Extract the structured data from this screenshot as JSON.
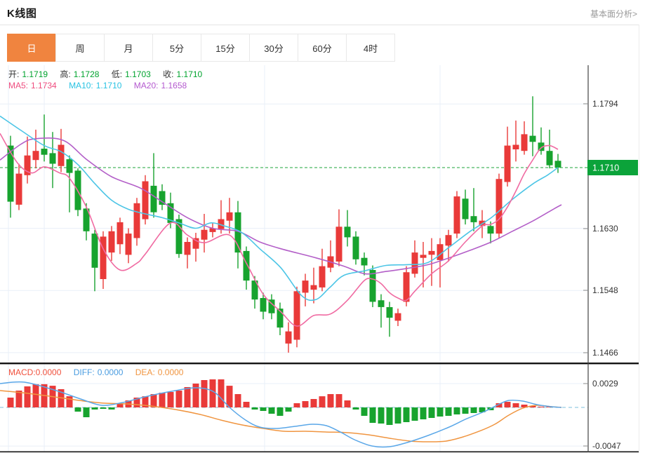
{
  "header": {
    "title": "K线图",
    "link": "基本面分析>"
  },
  "tabs": {
    "items": [
      {
        "label": "日",
        "name": "tab-daily",
        "active": true
      },
      {
        "label": "周",
        "name": "tab-weekly",
        "active": false
      },
      {
        "label": "月",
        "name": "tab-monthly",
        "active": false
      },
      {
        "label": "5分",
        "name": "tab-5min",
        "active": false
      },
      {
        "label": "15分",
        "name": "tab-15min",
        "active": false
      },
      {
        "label": "30分",
        "name": "tab-30min",
        "active": false
      },
      {
        "label": "60分",
        "name": "tab-60min",
        "active": false
      },
      {
        "label": "4时",
        "name": "tab-4hour",
        "active": false
      }
    ]
  },
  "ohlc": {
    "open_label": "开:",
    "open": "1.1719",
    "high_label": "高:",
    "high": "1.1728",
    "low_label": "低:",
    "low": "1.1703",
    "close_label": "收:",
    "close": "1.1710"
  },
  "ma": {
    "ma5_label": "MA5:",
    "ma5": "1.1734",
    "ma10_label": "MA10:",
    "ma10": "1.1710",
    "ma20_label": "MA20:",
    "ma20": "1.1658"
  },
  "macd_info": {
    "macd_label": "MACD:",
    "macd": "0.0000",
    "diff_label": "DIFF:",
    "diff": "0.0000",
    "dea_label": "DEA:",
    "dea": "0.0000"
  },
  "colors": {
    "accent_orange": "#f0843f",
    "up_red": "#e93a39",
    "down_green": "#17a32e",
    "ma5_pink": "#f06ba2",
    "ma10_cyan": "#4cc5e6",
    "ma20_purple": "#b35fc8",
    "price_dash_green": "#1ca33a",
    "badge_green": "#0ba33a",
    "diff_blue": "#5aa7e8",
    "dea_orange": "#f09540",
    "grid": "#e9eff8",
    "zero_dash": "#7cc0dc",
    "axis_text": "#333333",
    "axis_line": "#444444"
  },
  "chart_data": {
    "type": "candlestick",
    "title": "K线图 (daily K-line with MA5/MA10/MA20 and MACD sub-chart)",
    "panels": [
      "kline",
      "macd"
    ],
    "price_axis": {
      "ticks": [
        {
          "label": "1.1794",
          "value": 1.1794
        },
        {
          "label": "1.1630",
          "value": 1.163
        },
        {
          "label": "1.1548",
          "value": 1.1548
        },
        {
          "label": "1.1466",
          "value": 1.1466
        }
      ],
      "current": {
        "label": "1.1710",
        "value": 1.171
      },
      "range_top": 1.1845,
      "range_bottom": 1.1452
    },
    "candles_format": [
      "open",
      "high",
      "low",
      "close"
    ],
    "candles": [
      [
        1.1739,
        1.1752,
        1.1644,
        1.1665
      ],
      [
        1.1661,
        1.1715,
        1.1654,
        1.1702
      ],
      [
        1.17,
        1.1751,
        1.1689,
        1.1726
      ],
      [
        1.172,
        1.176,
        1.1709,
        1.1732
      ],
      [
        1.1735,
        1.178,
        1.1718,
        1.1727
      ],
      [
        1.1729,
        1.1757,
        1.1683,
        1.1715
      ],
      [
        1.1712,
        1.1761,
        1.1704,
        1.174
      ],
      [
        1.1721,
        1.1726,
        1.1651,
        1.1703
      ],
      [
        1.1706,
        1.1709,
        1.1646,
        1.1654
      ],
      [
        1.1656,
        1.1663,
        1.1614,
        1.1626
      ],
      [
        1.1623,
        1.1628,
        1.1547,
        1.1578
      ],
      [
        1.1563,
        1.1626,
        1.155,
        1.1619
      ],
      [
        1.1598,
        1.1633,
        1.1587,
        1.1626
      ],
      [
        1.1609,
        1.1644,
        1.1596,
        1.1638
      ],
      [
        1.1595,
        1.163,
        1.1584,
        1.1623
      ],
      [
        1.1617,
        1.167,
        1.1607,
        1.1663
      ],
      [
        1.1642,
        1.17,
        1.1635,
        1.1692
      ],
      [
        1.1686,
        1.1729,
        1.1644,
        1.1651
      ],
      [
        1.1679,
        1.1688,
        1.1654,
        1.1661
      ],
      [
        1.1663,
        1.1677,
        1.163,
        1.1637
      ],
      [
        1.1642,
        1.1648,
        1.1591,
        1.1596
      ],
      [
        1.1595,
        1.1618,
        1.1577,
        1.1612
      ],
      [
        1.1603,
        1.1624,
        1.1586,
        1.1617
      ],
      [
        1.1615,
        1.1649,
        1.1598,
        1.1628
      ],
      [
        1.1625,
        1.1637,
        1.1618,
        1.163
      ],
      [
        1.1629,
        1.1667,
        1.1623,
        1.1642
      ],
      [
        1.164,
        1.167,
        1.1623,
        1.1651
      ],
      [
        1.1651,
        1.1666,
        1.1577,
        1.1598
      ],
      [
        1.16,
        1.1606,
        1.1549,
        1.1561
      ],
      [
        1.1561,
        1.1567,
        1.1524,
        1.1536
      ],
      [
        1.1538,
        1.1545,
        1.151,
        1.152
      ],
      [
        1.1536,
        1.1543,
        1.151,
        1.1518
      ],
      [
        1.1524,
        1.1532,
        1.1489,
        1.1499
      ],
      [
        1.1478,
        1.1506,
        1.1466,
        1.1494
      ],
      [
        1.1483,
        1.1553,
        1.1473,
        1.1547
      ],
      [
        1.1545,
        1.157,
        1.1527,
        1.1561
      ],
      [
        1.1549,
        1.1578,
        1.1531,
        1.1555
      ],
      [
        1.1552,
        1.1603,
        1.1547,
        1.158
      ],
      [
        1.1578,
        1.1614,
        1.1572,
        1.1593
      ],
      [
        1.1586,
        1.1655,
        1.158,
        1.1632
      ],
      [
        1.1632,
        1.1654,
        1.1606,
        1.1618
      ],
      [
        1.1619,
        1.1626,
        1.1582,
        1.1589
      ],
      [
        1.1591,
        1.1598,
        1.1568,
        1.1581
      ],
      [
        1.1575,
        1.1581,
        1.1526,
        1.1533
      ],
      [
        1.1535,
        1.1543,
        1.1499,
        1.1526
      ],
      [
        1.1526,
        1.1533,
        1.1487,
        1.1512
      ],
      [
        1.1508,
        1.1524,
        1.1501,
        1.1518
      ],
      [
        1.1533,
        1.158,
        1.1527,
        1.1572
      ],
      [
        1.157,
        1.1614,
        1.1565,
        1.1598
      ],
      [
        1.1591,
        1.1612,
        1.1552,
        1.1595
      ],
      [
        1.1595,
        1.1617,
        1.1554,
        1.16
      ],
      [
        1.1588,
        1.1617,
        1.1552,
        1.1609
      ],
      [
        1.1607,
        1.1628,
        1.1586,
        1.1621
      ],
      [
        1.1623,
        1.1679,
        1.1617,
        1.1672
      ],
      [
        1.1669,
        1.1681,
        1.1635,
        1.1642
      ],
      [
        1.1646,
        1.1683,
        1.1626,
        1.1638
      ],
      [
        1.1633,
        1.1654,
        1.1617,
        1.164
      ],
      [
        1.1633,
        1.1639,
        1.161,
        1.1623
      ],
      [
        1.1623,
        1.1702,
        1.1617,
        1.1695
      ],
      [
        1.1691,
        1.1764,
        1.1685,
        1.1739
      ],
      [
        1.1734,
        1.1772,
        1.1718,
        1.174
      ],
      [
        1.1732,
        1.1771,
        1.1727,
        1.1754
      ],
      [
        1.1752,
        1.1804,
        1.1725,
        1.1744
      ],
      [
        1.1743,
        1.1763,
        1.1727,
        1.1732
      ],
      [
        1.1732,
        1.176,
        1.1709,
        1.1713
      ],
      [
        1.1719,
        1.1728,
        1.1703,
        1.171
      ]
    ],
    "ma5_points": [
      [
        0,
        1.1755
      ],
      [
        25,
        1.1716
      ],
      [
        45,
        1.1703
      ],
      [
        63,
        1.1711
      ],
      [
        85,
        1.1703
      ],
      [
        99,
        1.1696
      ],
      [
        123,
        1.1658
      ],
      [
        147,
        1.1603
      ],
      [
        171,
        1.1575
      ],
      [
        195,
        1.1584
      ],
      [
        207,
        1.1596
      ],
      [
        243,
        1.1637
      ],
      [
        267,
        1.1621
      ],
      [
        291,
        1.1611
      ],
      [
        327,
        1.1621
      ],
      [
        351,
        1.1584
      ],
      [
        375,
        1.1543
      ],
      [
        400,
        1.152
      ],
      [
        423,
        1.1501
      ],
      [
        447,
        1.1515
      ],
      [
        471,
        1.1517
      ],
      [
        495,
        1.1535
      ],
      [
        519,
        1.1561
      ],
      [
        531,
        1.1563
      ],
      [
        543,
        1.1557
      ],
      [
        555,
        1.1545
      ],
      [
        567,
        1.1538
      ],
      [
        579,
        1.1535
      ],
      [
        591,
        1.1547
      ],
      [
        615,
        1.157
      ],
      [
        639,
        1.1587
      ],
      [
        663,
        1.1612
      ],
      [
        687,
        1.1633
      ],
      [
        699,
        1.1635
      ],
      [
        711,
        1.1642
      ],
      [
        723,
        1.1658
      ],
      [
        735,
        1.1679
      ],
      [
        747,
        1.1702
      ],
      [
        759,
        1.172
      ],
      [
        771,
        1.1736
      ],
      [
        783,
        1.1739
      ],
      [
        795,
        1.1734
      ]
    ],
    "ma10_points": [
      [
        0,
        1.1778
      ],
      [
        30,
        1.1759
      ],
      [
        63,
        1.1739
      ],
      [
        87,
        1.1731
      ],
      [
        111,
        1.1714
      ],
      [
        135,
        1.1689
      ],
      [
        159,
        1.1667
      ],
      [
        183,
        1.1655
      ],
      [
        207,
        1.1649
      ],
      [
        231,
        1.1644
      ],
      [
        255,
        1.1637
      ],
      [
        279,
        1.163
      ],
      [
        300,
        1.1637
      ],
      [
        320,
        1.1633
      ],
      [
        345,
        1.1624
      ],
      [
        370,
        1.1603
      ],
      [
        400,
        1.1578
      ],
      [
        430,
        1.1541
      ],
      [
        450,
        1.1536
      ],
      [
        470,
        1.1552
      ],
      [
        490,
        1.1568
      ],
      [
        520,
        1.1574
      ],
      [
        550,
        1.1581
      ],
      [
        580,
        1.1582
      ],
      [
        610,
        1.1585
      ],
      [
        640,
        1.1605
      ],
      [
        670,
        1.1626
      ],
      [
        700,
        1.1644
      ],
      [
        730,
        1.1668
      ],
      [
        760,
        1.1689
      ],
      [
        780,
        1.17
      ],
      [
        795,
        1.171
      ]
    ],
    "ma20_points": [
      [
        0,
        1.172
      ],
      [
        30,
        1.1741
      ],
      [
        50,
        1.1748
      ],
      [
        90,
        1.1746
      ],
      [
        123,
        1.1721
      ],
      [
        159,
        1.1698
      ],
      [
        200,
        1.1683
      ],
      [
        231,
        1.1665
      ],
      [
        267,
        1.1644
      ],
      [
        303,
        1.163
      ],
      [
        339,
        1.1626
      ],
      [
        370,
        1.1612
      ],
      [
        400,
        1.1603
      ],
      [
        450,
        1.1591
      ],
      [
        490,
        1.158
      ],
      [
        520,
        1.157
      ],
      [
        550,
        1.1573
      ],
      [
        580,
        1.1577
      ],
      [
        610,
        1.1582
      ],
      [
        640,
        1.1591
      ],
      [
        670,
        1.1601
      ],
      [
        700,
        1.1612
      ],
      [
        730,
        1.1626
      ],
      [
        760,
        1.164
      ],
      [
        790,
        1.1656
      ],
      [
        800,
        1.1661
      ]
    ],
    "macd": {
      "axis_ticks": [
        {
          "label": "0.0029",
          "value": 0.0029
        },
        {
          "label": "-0.0047",
          "value": -0.0047
        }
      ],
      "hist": [
        0.00119,
        0.00205,
        0.00256,
        0.00282,
        0.00282,
        0.00264,
        0.00222,
        0.00136,
        -0.00051,
        -0.00119,
        -0.00026,
        -0.00017,
        -0.00026,
        0.00043,
        0.00085,
        0.00119,
        0.00136,
        0.00162,
        0.00179,
        0.00188,
        0.00205,
        0.00247,
        0.0029,
        0.00333,
        0.00341,
        0.00341,
        0.00264,
        0.00162,
        0.00068,
        -0.00026,
        -0.00043,
        -0.00077,
        -0.00102,
        -0.00051,
        0.00051,
        0.00077,
        0.00102,
        0.00136,
        0.00162,
        0.00162,
        0.00085,
        -0.00026,
        -0.00102,
        -0.00188,
        -0.00196,
        -0.00213,
        -0.00196,
        -0.00179,
        -0.00162,
        -0.00145,
        -0.00128,
        -0.00111,
        -0.00102,
        -0.00085,
        -0.00077,
        -0.00068,
        -0.0006,
        -0.00034,
        0.00051,
        0.00068,
        0.00051,
        0.00034,
        0.00017,
        9e-05,
        9e-05,
        0
      ],
      "diff_points": [
        [
          0,
          0.0029
        ],
        [
          35,
          0.00307
        ],
        [
          80,
          0.00205
        ],
        [
          115,
          0.00102
        ],
        [
          145,
          0.00026
        ],
        [
          175,
          0.0006
        ],
        [
          210,
          0.00136
        ],
        [
          250,
          0.00205
        ],
        [
          280,
          0.00239
        ],
        [
          305,
          0.00188
        ],
        [
          327,
          0
        ],
        [
          350,
          -0.00154
        ],
        [
          370,
          -0.00239
        ],
        [
          395,
          -0.00256
        ],
        [
          420,
          -0.0023
        ],
        [
          445,
          -0.00205
        ],
        [
          465,
          -0.00222
        ],
        [
          485,
          -0.00299
        ],
        [
          505,
          -0.00392
        ],
        [
          530,
          -0.00469
        ],
        [
          555,
          -0.00478
        ],
        [
          580,
          -0.00427
        ],
        [
          610,
          -0.00341
        ],
        [
          640,
          -0.00239
        ],
        [
          665,
          -0.00137
        ],
        [
          690,
          -0.00051
        ],
        [
          710,
          0.00034
        ],
        [
          725,
          0.00085
        ],
        [
          745,
          0.00077
        ],
        [
          765,
          0.00034
        ],
        [
          785,
          9e-05
        ],
        [
          800,
          0
        ]
      ],
      "dea_points": [
        [
          0,
          0.00205
        ],
        [
          40,
          0.00171
        ],
        [
          85,
          0.00119
        ],
        [
          120,
          0.00077
        ],
        [
          150,
          0.00051
        ],
        [
          180,
          0.00043
        ],
        [
          215,
          0.00017
        ],
        [
          250,
          -0.00026
        ],
        [
          285,
          -0.00085
        ],
        [
          315,
          -0.00154
        ],
        [
          345,
          -0.00213
        ],
        [
          375,
          -0.00256
        ],
        [
          405,
          -0.0029
        ],
        [
          435,
          -0.0029
        ],
        [
          465,
          -0.00299
        ],
        [
          495,
          -0.00307
        ],
        [
          525,
          -0.00333
        ],
        [
          555,
          -0.00375
        ],
        [
          585,
          -0.0041
        ],
        [
          610,
          -0.00418
        ],
        [
          635,
          -0.0041
        ],
        [
          660,
          -0.00358
        ],
        [
          685,
          -0.00282
        ],
        [
          705,
          -0.00205
        ],
        [
          725,
          -0.00094
        ],
        [
          745,
          -9e-05
        ],
        [
          765,
          0.00026
        ],
        [
          785,
          9e-05
        ],
        [
          800,
          0
        ]
      ]
    },
    "layout_hints": {
      "v_gridlines_x": [
        12,
        63,
        377,
        627
      ],
      "grid": true,
      "legend_position": "top-left overlay"
    }
  }
}
